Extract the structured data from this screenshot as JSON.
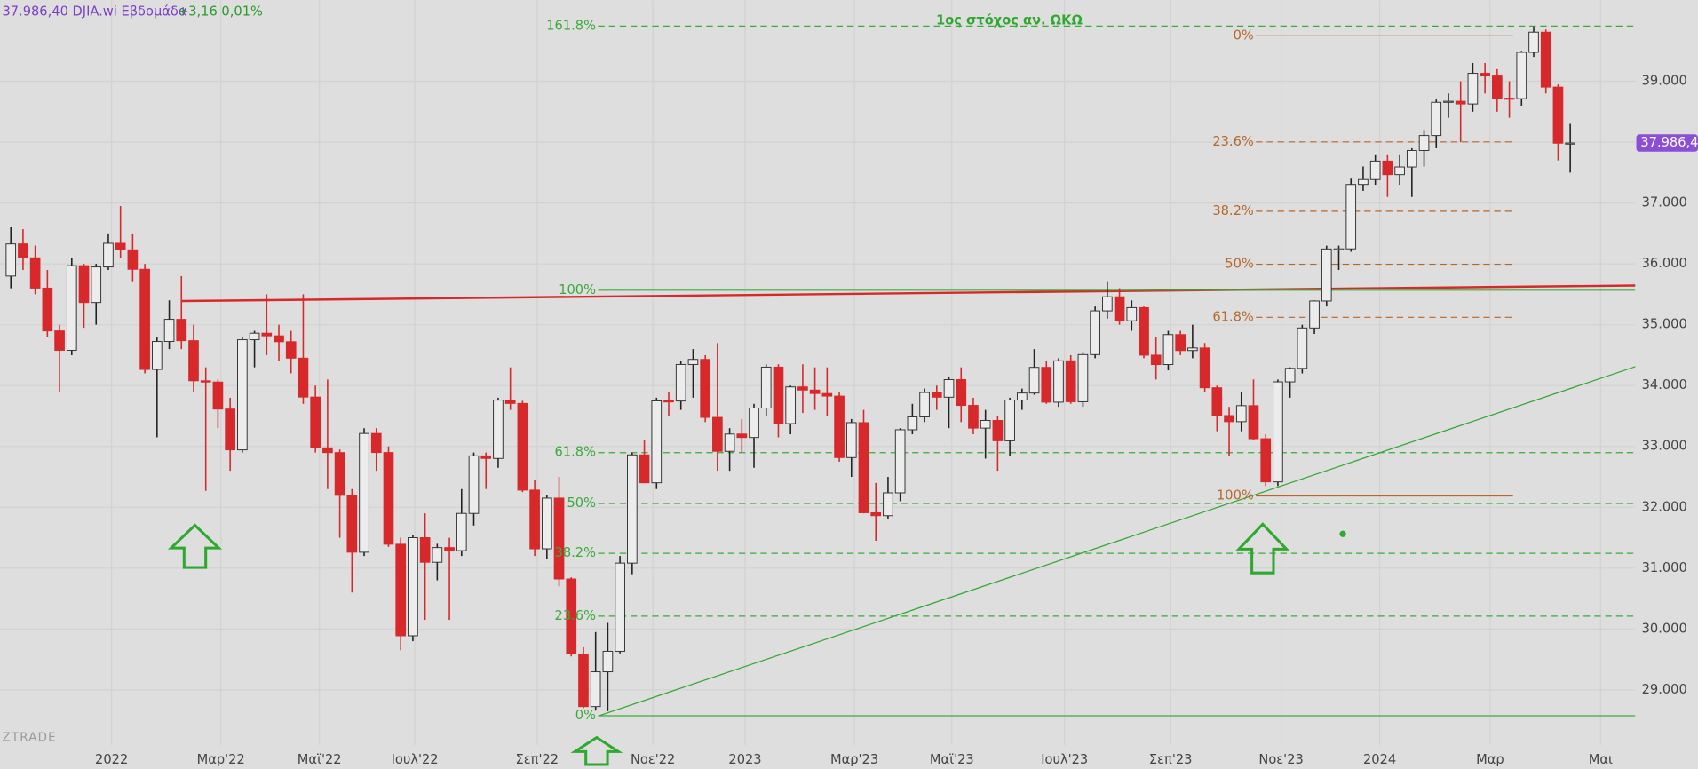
{
  "chart_data": {
    "type": "candlestick",
    "header": "37.986,40 DJIA.wi Εβδομάδα",
    "header_change": "+3,16 0,01%",
    "watermark": "ZTRADE",
    "annotation": "1ος στόχος αν. ΩΚΩ",
    "up_color": "#ececec",
    "down_color": "#d7282b",
    "grid": true,
    "categories": [
      null,
      null,
      null,
      null,
      null,
      null,
      null,
      null,
      null,
      null,
      null,
      null,
      null,
      null,
      null,
      null,
      null,
      null,
      null,
      null,
      null,
      null,
      null,
      null,
      null,
      null,
      null,
      null,
      null,
      null,
      null,
      null,
      null,
      null,
      null,
      null,
      null,
      null,
      null,
      null,
      null,
      null,
      null,
      null,
      null,
      null,
      null,
      null,
      null,
      null,
      null,
      null,
      null,
      null,
      null,
      null,
      null,
      null,
      null,
      null,
      null,
      null,
      null,
      null,
      null,
      null,
      null,
      null,
      null,
      null,
      null,
      null,
      null,
      null,
      null,
      null,
      null,
      null,
      null,
      null,
      null,
      null,
      null,
      null,
      null,
      null,
      null,
      null,
      null,
      null,
      null,
      null,
      null,
      null,
      null,
      null,
      null,
      null,
      null,
      null,
      null,
      null,
      null,
      null,
      null,
      null,
      null,
      null,
      null,
      null,
      null,
      null,
      null,
      null,
      null,
      null,
      null,
      null,
      null,
      null,
      null,
      null,
      null,
      null,
      null,
      null,
      null,
      null,
      null
    ],
    "ohlc": [
      [
        35800,
        36600,
        35600,
        36328
      ],
      [
        36328,
        36570,
        35900,
        36100
      ],
      [
        36100,
        36300,
        35500,
        35602
      ],
      [
        35602,
        35900,
        34800,
        34899
      ],
      [
        34899,
        35000,
        33900,
        34580
      ],
      [
        34580,
        36100,
        34500,
        35971
      ],
      [
        35971,
        36000,
        34950,
        35365
      ],
      [
        35365,
        36000,
        35000,
        35950
      ],
      [
        35950,
        36500,
        35900,
        36338
      ],
      [
        36338,
        36950,
        36100,
        36231
      ],
      [
        36231,
        36500,
        35700,
        35911
      ],
      [
        35911,
        36000,
        34200,
        34265
      ],
      [
        34265,
        34800,
        33150,
        34725
      ],
      [
        34725,
        35400,
        34600,
        35089
      ],
      [
        35089,
        35800,
        34600,
        34738
      ],
      [
        34738,
        35000,
        33900,
        34079
      ],
      [
        34079,
        34300,
        32270,
        34058
      ],
      [
        34058,
        34100,
        33300,
        33614
      ],
      [
        33614,
        33800,
        32600,
        32944
      ],
      [
        32944,
        34800,
        32900,
        34754
      ],
      [
        34754,
        34900,
        34300,
        34861
      ],
      [
        34861,
        35500,
        34500,
        34818
      ],
      [
        34818,
        35000,
        34400,
        34721
      ],
      [
        34721,
        34900,
        34200,
        34451
      ],
      [
        34451,
        35500,
        33700,
        33811
      ],
      [
        33811,
        34000,
        32900,
        32977
      ],
      [
        32977,
        34100,
        32300,
        32899
      ],
      [
        32899,
        32950,
        31500,
        32196
      ],
      [
        32196,
        32300,
        30600,
        31262
      ],
      [
        31262,
        33300,
        31200,
        33213
      ],
      [
        33213,
        33300,
        32600,
        32900
      ],
      [
        32900,
        33000,
        31350,
        31393
      ],
      [
        31393,
        31500,
        29650,
        29889
      ],
      [
        29889,
        31550,
        29800,
        31501
      ],
      [
        31501,
        31900,
        30150,
        31097
      ],
      [
        31097,
        31400,
        30800,
        31338
      ],
      [
        31338,
        31500,
        30150,
        31288
      ],
      [
        31288,
        32300,
        31200,
        31899
      ],
      [
        31899,
        32900,
        31700,
        32845
      ],
      [
        32845,
        32900,
        32300,
        32803
      ],
      [
        32803,
        33800,
        32650,
        33761
      ],
      [
        33761,
        34300,
        33600,
        33706
      ],
      [
        33706,
        33750,
        32250,
        32283
      ],
      [
        32283,
        32450,
        31200,
        31318
      ],
      [
        31318,
        32200,
        31150,
        32151
      ],
      [
        32151,
        32500,
        30700,
        30822
      ],
      [
        30822,
        30850,
        29550,
        29590
      ],
      [
        29590,
        29700,
        28700,
        28726
      ],
      [
        28726,
        29950,
        28660,
        29297
      ],
      [
        29297,
        30100,
        28650,
        29634
      ],
      [
        29634,
        31200,
        29600,
        31083
      ],
      [
        31083,
        32900,
        30900,
        32861
      ],
      [
        32861,
        33100,
        32400,
        32403
      ],
      [
        32403,
        33800,
        32300,
        33748
      ],
      [
        33748,
        33900,
        33500,
        33746
      ],
      [
        33746,
        34400,
        33600,
        34347
      ],
      [
        34347,
        34600,
        33800,
        34430
      ],
      [
        34430,
        34500,
        33400,
        33477
      ],
      [
        33477,
        34700,
        32600,
        32920
      ],
      [
        32920,
        33300,
        32600,
        33204
      ],
      [
        33204,
        33450,
        32900,
        33147
      ],
      [
        33147,
        33700,
        32650,
        33631
      ],
      [
        33631,
        34350,
        33500,
        34303
      ],
      [
        34303,
        34350,
        33150,
        33375
      ],
      [
        33375,
        34000,
        33200,
        33978
      ],
      [
        33978,
        34350,
        33550,
        33926
      ],
      [
        33926,
        34300,
        33600,
        33869
      ],
      [
        33869,
        34300,
        33500,
        33827
      ],
      [
        33827,
        33900,
        32750,
        32817
      ],
      [
        32817,
        33450,
        32500,
        33391
      ],
      [
        33391,
        33600,
        31900,
        31910
      ],
      [
        31910,
        32400,
        31450,
        31862
      ],
      [
        31862,
        32500,
        31800,
        32238
      ],
      [
        32238,
        33300,
        32100,
        33274
      ],
      [
        33274,
        33700,
        33200,
        33485
      ],
      [
        33485,
        33950,
        33400,
        33886
      ],
      [
        33886,
        34000,
        33600,
        33809
      ],
      [
        33809,
        34150,
        33300,
        34098
      ],
      [
        34098,
        34300,
        33400,
        33674
      ],
      [
        33674,
        33800,
        33200,
        33301
      ],
      [
        33301,
        33600,
        32800,
        33427
      ],
      [
        33427,
        33500,
        32600,
        33093
      ],
      [
        33093,
        33800,
        32850,
        33762
      ],
      [
        33762,
        33950,
        33600,
        33877
      ],
      [
        33877,
        34600,
        33850,
        34299
      ],
      [
        34299,
        34400,
        33700,
        33727
      ],
      [
        33727,
        34450,
        33650,
        34407
      ],
      [
        34407,
        34500,
        33700,
        33734
      ],
      [
        33734,
        34550,
        33650,
        34509
      ],
      [
        34509,
        35300,
        34450,
        35228
      ],
      [
        35228,
        35700,
        35100,
        35459
      ],
      [
        35459,
        35600,
        35000,
        35065
      ],
      [
        35065,
        35400,
        34900,
        35281
      ],
      [
        35281,
        35300,
        34450,
        34500
      ],
      [
        34500,
        34800,
        34100,
        34346
      ],
      [
        34346,
        34900,
        34250,
        34838
      ],
      [
        34838,
        34900,
        34500,
        34576
      ],
      [
        34576,
        35000,
        34450,
        34618
      ],
      [
        34618,
        34700,
        33900,
        33964
      ],
      [
        33964,
        34000,
        33250,
        33507
      ],
      [
        33507,
        33650,
        32850,
        33407
      ],
      [
        33407,
        33900,
        33250,
        33670
      ],
      [
        33670,
        34100,
        33100,
        33127
      ],
      [
        33127,
        33200,
        32350,
        32418
      ],
      [
        32418,
        34100,
        32350,
        34061
      ],
      [
        34061,
        34300,
        33800,
        34283
      ],
      [
        34283,
        35000,
        34200,
        34947
      ],
      [
        34947,
        35400,
        34850,
        35390
      ],
      [
        35390,
        36300,
        35300,
        36245
      ],
      [
        36245,
        36300,
        35900,
        36247
      ],
      [
        36247,
        37400,
        36200,
        37305
      ],
      [
        37305,
        37600,
        37200,
        37385
      ],
      [
        37385,
        37800,
        37300,
        37689
      ],
      [
        37689,
        37800,
        37100,
        37466
      ],
      [
        37466,
        37800,
        37300,
        37592
      ],
      [
        37592,
        37900,
        37100,
        37863
      ],
      [
        37863,
        38200,
        37600,
        38109
      ],
      [
        38109,
        38700,
        37900,
        38654
      ],
      [
        38654,
        38800,
        38400,
        38671
      ],
      [
        38671,
        39000,
        38000,
        38627
      ],
      [
        38627,
        39300,
        38500,
        39131
      ],
      [
        39131,
        39300,
        38800,
        39087
      ],
      [
        39087,
        39200,
        38500,
        38722
      ],
      [
        38722,
        39000,
        38400,
        38714
      ],
      [
        38714,
        39500,
        38600,
        39475
      ],
      [
        39475,
        39900,
        39400,
        39807
      ],
      [
        39807,
        39850,
        38800,
        38904
      ],
      [
        38904,
        38950,
        37700,
        37983
      ],
      [
        37983,
        38300,
        37500,
        37986
      ]
    ],
    "xlim": [
      -0.89,
      133.33
    ],
    "xticks": [
      {
        "value": 8.27,
        "label": "2022"
      },
      {
        "value": 17.24,
        "label": "Μαρ'22"
      },
      {
        "value": 25.33,
        "label": "Μαϊ'22"
      },
      {
        "value": 33.16,
        "label": "Ιουλ'22"
      },
      {
        "value": 43.2,
        "label": "Σεπ'22"
      },
      {
        "value": 52.7,
        "label": "Νοε'22"
      },
      {
        "value": 60.27,
        "label": "2023"
      },
      {
        "value": 69.24,
        "label": "Μαρ'23"
      },
      {
        "value": 77.24,
        "label": "Μαϊ'23"
      },
      {
        "value": 86.49,
        "label": "Ιουλ'23"
      },
      {
        "value": 95.2,
        "label": "Σεπ'23"
      },
      {
        "value": 104.27,
        "label": "Νοε'23"
      },
      {
        "value": 112.36,
        "label": "2024"
      },
      {
        "value": 121.42,
        "label": "Μαρ"
      },
      {
        "value": 130.49,
        "label": "Μαι"
      }
    ],
    "ylim": [
      28093,
      40334
    ],
    "yticks": [
      {
        "value": 29000,
        "label": "29.000"
      },
      {
        "value": 30000,
        "label": "30.000"
      },
      {
        "value": 31000,
        "label": "31.000"
      },
      {
        "value": 32000,
        "label": "32.000"
      },
      {
        "value": 33000,
        "label": "33.000"
      },
      {
        "value": 34000,
        "label": "34.000"
      },
      {
        "value": 35000,
        "label": "35.000"
      },
      {
        "value": 36000,
        "label": "36.000"
      },
      {
        "value": 37000,
        "label": "37.000"
      },
      {
        "value": 38000,
        "label": "38.000"
      },
      {
        "value": 39000,
        "label": "39.000"
      }
    ],
    "last_price": {
      "value": 37986.4,
      "label": "37.986,40",
      "color": "#8a4fd6"
    },
    "fib_green": {
      "color": "#3aab3a",
      "start": 48.2,
      "levels": [
        {
          "label": "161.8%",
          "value": 39907,
          "dashed": true
        },
        {
          "label": "100%",
          "value": 35567,
          "dashed": false
        },
        {
          "label": "61.8%",
          "value": 32898,
          "dashed": true
        },
        {
          "label": "50%",
          "value": 32062,
          "dashed": true
        },
        {
          "label": "38.2%",
          "value": 31244,
          "dashed": true
        },
        {
          "label": "23.6%",
          "value": 30212,
          "dashed": true
        },
        {
          "label": "0%",
          "value": 28575,
          "dashed": false
        }
      ]
    },
    "fib_orange": {
      "color": "#b5682a",
      "start": 102.2,
      "end": 123.3,
      "levels": [
        {
          "label": "0%",
          "value": 39747,
          "dashed": false
        },
        {
          "label": "23.6%",
          "value": 38004,
          "dashed": true
        },
        {
          "label": "38.2%",
          "value": 36865,
          "dashed": true
        },
        {
          "label": "50%",
          "value": 35994,
          "dashed": true
        },
        {
          "label": "61.8%",
          "value": 35122,
          "dashed": true
        },
        {
          "label": "100%",
          "value": 32186,
          "dashed": false
        }
      ]
    },
    "trendlines": [
      {
        "color": "#d7282b",
        "points": [
          [
            14.04,
            35389
          ],
          [
            138.5,
            35656
          ]
        ]
      },
      {
        "color": "#2fa82f",
        "points": [
          [
            48.27,
            28575
          ],
          [
            138.5,
            34659
          ]
        ]
      }
    ]
  }
}
